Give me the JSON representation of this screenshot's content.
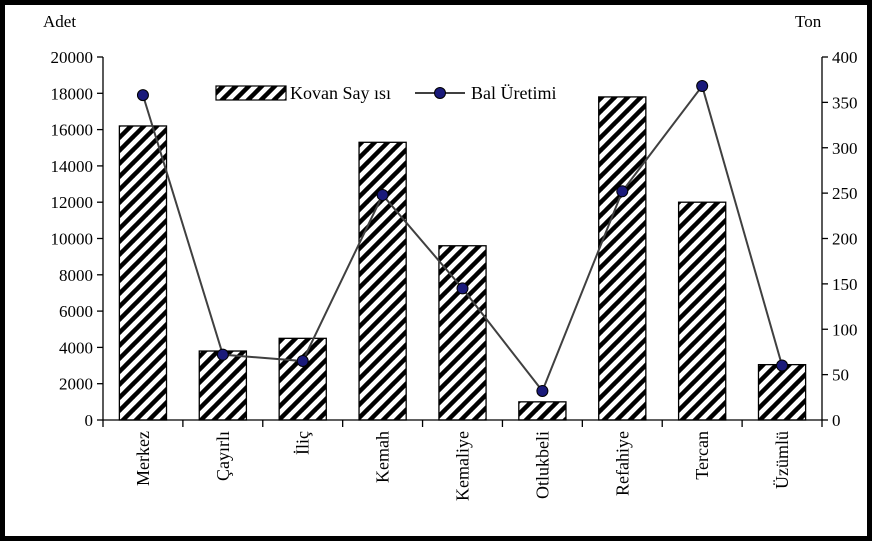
{
  "chart_data": {
    "type": "bar",
    "categories": [
      "Merkez",
      "Çayırlı",
      "İliç",
      "Kemah",
      "Kemaliye",
      "Otlukbeli",
      "Refahiye",
      "Tercan",
      "Üzümlü"
    ],
    "series": [
      {
        "name": "Kovan Say ısı",
        "type": "bar",
        "axis": "left",
        "pattern": "diagonal-hatch",
        "values": [
          16200,
          3800,
          4500,
          15300,
          9600,
          1000,
          17800,
          12000,
          3050
        ]
      },
      {
        "name": "Bal Üretimi",
        "type": "line",
        "axis": "right",
        "marker": "circle",
        "values": [
          358,
          72,
          65,
          248,
          145,
          32,
          252,
          368,
          60
        ]
      }
    ],
    "y_left": {
      "unit_label": "Adet",
      "ylim": [
        0,
        20000
      ],
      "ticks": [
        "0",
        "2000",
        "4000",
        "6000",
        "8000",
        "10000",
        "12000",
        "14000",
        "16000",
        "18000",
        "20000"
      ]
    },
    "y_right": {
      "unit_label": "Ton",
      "ylim": [
        0,
        400
      ],
      "ticks": [
        "0",
        "50",
        "100",
        "150",
        "200",
        "250",
        "300",
        "350",
        "400"
      ]
    },
    "legend_position": "top-center",
    "grid": false,
    "colors": {
      "bar_fill": "#ffffff",
      "hatch": "#000000",
      "line": "#404040",
      "marker_fill": "#1a1a7a",
      "marker_stroke": "#000000",
      "axis": "#000000"
    }
  }
}
